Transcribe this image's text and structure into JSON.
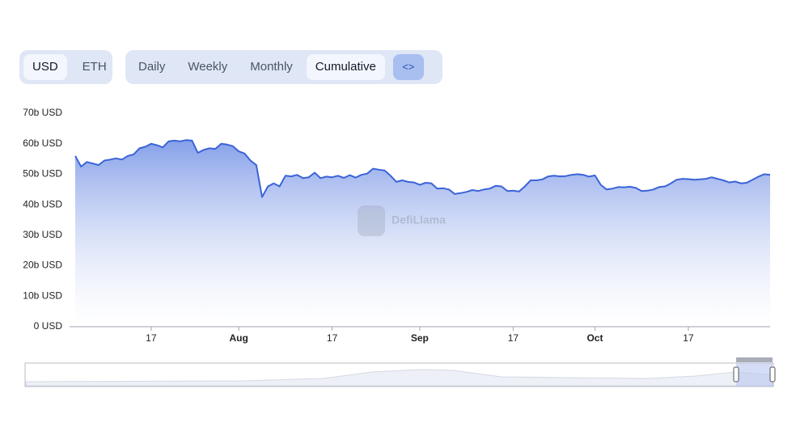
{
  "controls": {
    "currency": [
      "USD",
      "ETH"
    ],
    "period": [
      "Daily",
      "Weekly",
      "Monthly",
      "Cumulative"
    ]
  },
  "watermark": "DefiLlama",
  "chart_data": {
    "type": "area",
    "color": "#3b63d9",
    "grid": false,
    "categories": [
      null,
      null,
      null,
      null,
      null,
      null,
      null,
      null,
      null,
      null,
      null,
      null,
      null,
      "17",
      null,
      null,
      null,
      null,
      null,
      null,
      null,
      null,
      null,
      null,
      null,
      null,
      null,
      null,
      "Aug",
      null,
      null,
      null,
      null,
      null,
      null,
      null,
      null,
      null,
      null,
      null,
      null,
      null,
      null,
      null,
      "17",
      null,
      null,
      null,
      null,
      null,
      null,
      null,
      null,
      null,
      null,
      null,
      null,
      null,
      null,
      "Sep",
      null,
      null,
      null,
      null,
      null,
      null,
      null,
      null,
      null,
      null,
      null,
      null,
      null,
      null,
      null,
      "17",
      null,
      null,
      null,
      null,
      null,
      null,
      null,
      null,
      null,
      null,
      null,
      null,
      null,
      "Oct",
      null,
      null,
      null,
      null,
      null,
      null,
      null,
      null,
      null,
      null,
      null,
      null,
      null,
      null,
      null,
      "17",
      null,
      null,
      null,
      null,
      null,
      null,
      null,
      null,
      null,
      null,
      null,
      null,
      null,
      null
    ],
    "values": [
      56,
      52.5,
      54,
      53.5,
      53,
      54.5,
      54.8,
      55.2,
      54.8,
      56,
      56.5,
      58.5,
      59,
      60,
      59.5,
      58.8,
      60.8,
      61,
      60.8,
      61.2,
      61,
      57,
      58,
      58.5,
      58.3,
      60,
      59.7,
      59.2,
      57.5,
      56.8,
      54.5,
      53,
      42.5,
      46,
      47,
      46,
      49.5,
      49.3,
      49.8,
      48.7,
      49,
      50.5,
      48.7,
      49.2,
      49,
      49.5,
      48.8,
      49.7,
      48.9,
      49.8,
      50.2,
      51.8,
      51.5,
      51.2,
      49.5,
      47.5,
      48,
      47.5,
      47.3,
      46.5,
      47.2,
      47,
      45.3,
      45.4,
      45,
      43.5,
      43.8,
      44.2,
      44.8,
      44.5,
      45,
      45.3,
      46.2,
      46,
      44.5,
      44.6,
      44.3,
      46,
      48,
      48,
      48.3,
      49.3,
      49.5,
      49.3,
      49.4,
      49.8,
      50,
      49.8,
      49.2,
      49.6,
      46.5,
      45,
      45.3,
      45.8,
      45.7,
      45.9,
      45.5,
      44.5,
      44.6,
      45,
      45.8,
      46,
      47,
      48.2,
      48.5,
      48.4,
      48.2,
      48.3,
      48.5,
      49,
      48.5,
      48,
      47.3,
      47.6,
      47,
      47.2,
      48.2,
      49.2,
      50,
      49.8
    ],
    "ylim": [
      0,
      70
    ],
    "yticks": [
      {
        "value": 0,
        "label": "0 USD"
      },
      {
        "value": 10,
        "label": "10b USD"
      },
      {
        "value": 20,
        "label": "20b USD"
      },
      {
        "value": 30,
        "label": "30b USD"
      },
      {
        "value": 40,
        "label": "40b USD"
      },
      {
        "value": 50,
        "label": "50b USD"
      },
      {
        "value": 60,
        "label": "60b USD"
      },
      {
        "value": 70,
        "label": "70b USD"
      }
    ]
  }
}
